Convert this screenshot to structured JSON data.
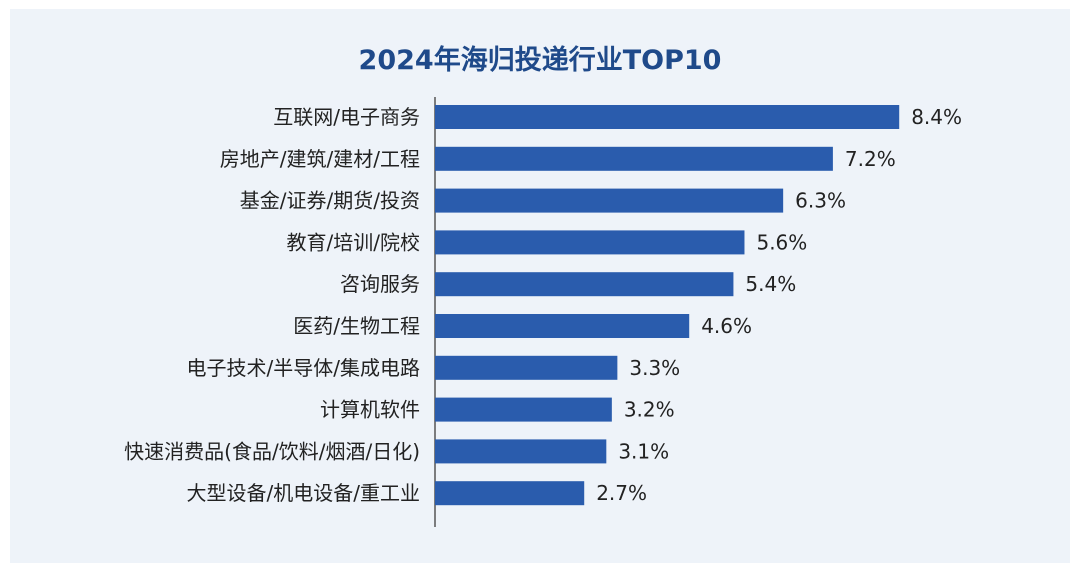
{
  "chart_data": {
    "type": "bar",
    "orientation": "horizontal",
    "title": "2024年海归投递行业TOP10",
    "xlim": [
      0,
      9.5
    ],
    "grid": false,
    "bar_color": "#2a5cad",
    "title_color": "#1f4a8a",
    "background_color": "#eef3f9",
    "categories": [
      "互联网/电子商务",
      "房地产/建筑/建材/工程",
      "基金/证券/期货/投资",
      "教育/培训/院校",
      "咨询服务",
      "医药/生物工程",
      "电子技术/半导体/集成电路",
      "计算机软件",
      "快速消费品(食品/饮料/烟酒/日化)",
      "大型设备/机电设备/重工业"
    ],
    "values": [
      8.4,
      7.2,
      6.3,
      5.6,
      5.4,
      4.6,
      3.3,
      3.2,
      3.1,
      2.7
    ],
    "value_labels": [
      "8.4%",
      "7.2%",
      "6.3%",
      "5.6%",
      "5.4%",
      "4.6%",
      "3.3%",
      "3.2%",
      "3.1%",
      "2.7%"
    ]
  }
}
